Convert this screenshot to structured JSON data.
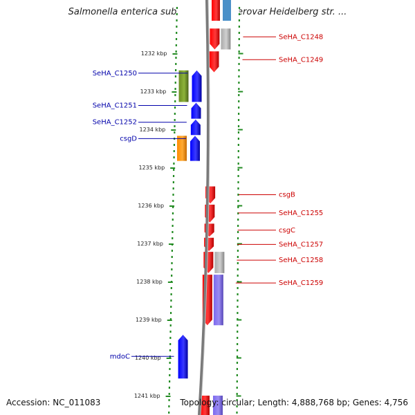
{
  "title": "Salmonella enterica subsp. enterica serovar Heidelberg str. ...",
  "footer": {
    "accession": "Accession: NC_011083",
    "stats": "Topology: circular; Length: 4,888,768 bp; Genes: 4,756"
  },
  "colors": {
    "forward_cds": "#ff0000",
    "reverse_cds": "#0000ff",
    "cog_green": "#6b8e23",
    "cog_orange": "#ff8c00",
    "cog_gray": "#aaaaaa",
    "cog_purple": "#7b68ee",
    "label_left": "#0000aa",
    "label_right": "#cc0000",
    "tick_green": "#228b22",
    "backbone": "#808080"
  },
  "scale": {
    "ticks": [
      {
        "kbp": 1232,
        "label": "1232 kbp"
      },
      {
        "kbp": 1233,
        "label": "1233 kbp"
      },
      {
        "kbp": 1234,
        "label": "1234 kbp"
      },
      {
        "kbp": 1235,
        "label": "1235 kbp"
      },
      {
        "kbp": 1236,
        "label": "1236 kbp"
      },
      {
        "kbp": 1237,
        "label": "1237 kbp"
      },
      {
        "kbp": 1238,
        "label": "1238 kbp"
      },
      {
        "kbp": 1239,
        "label": "1239 kbp"
      },
      {
        "kbp": 1240,
        "label": "1240 kbp"
      },
      {
        "kbp": 1241,
        "label": "1241 kbp"
      }
    ]
  },
  "genes_left": [
    {
      "name": "SeHA_C1250",
      "start": 1232.45,
      "end": 1233.28,
      "strand": "reverse",
      "cog": "green"
    },
    {
      "name": "SeHA_C1251",
      "start": 1233.3,
      "end": 1233.72,
      "strand": "reverse"
    },
    {
      "name": "SeHA_C1252",
      "start": 1233.74,
      "end": 1234.15,
      "strand": "reverse"
    },
    {
      "name": "csgD",
      "start": 1234.17,
      "end": 1234.83,
      "strand": "reverse",
      "cog": "orange"
    },
    {
      "name": "mdoC",
      "start": 1239.4,
      "end": 1240.55,
      "strand": "reverse"
    }
  ],
  "genes_right": [
    {
      "name": "SeHA_C1248",
      "start": 1231.35,
      "end": 1231.9,
      "strand": "forward",
      "cog": "gray"
    },
    {
      "name": "SeHA_C1249",
      "start": 1231.95,
      "end": 1232.5,
      "strand": "forward"
    },
    {
      "name": "csgB",
      "start": 1235.5,
      "end": 1235.95,
      "strand": "forward"
    },
    {
      "name": "SeHA_C1255",
      "start": 1235.98,
      "end": 1236.45,
      "strand": "forward"
    },
    {
      "name": "csgC",
      "start": 1236.48,
      "end": 1236.82,
      "strand": "forward"
    },
    {
      "name": "SeHA_C1257",
      "start": 1236.85,
      "end": 1237.2,
      "strand": "forward"
    },
    {
      "name": "SeHA_C1258",
      "start": 1237.22,
      "end": 1237.78,
      "strand": "forward",
      "cog": "gray"
    },
    {
      "name": "SeHA_C1259",
      "start": 1237.82,
      "end": 1239.15,
      "strand": "forward",
      "cog": "purple"
    }
  ],
  "clipped_features": [
    {
      "start": 1241.0,
      "end": 1241.6,
      "strand": "forward",
      "cog": "purple"
    }
  ]
}
